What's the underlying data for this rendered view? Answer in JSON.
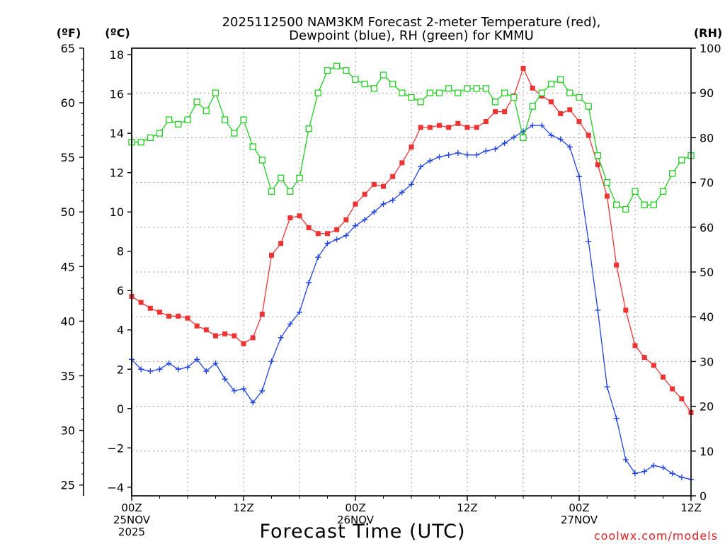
{
  "chart_data": {
    "type": "line",
    "title_line1": "2025112500 NAM3KM Forecast 2-meter Temperature (red),",
    "title_line2": "Dewpoint (blue), RH (green) for KMMU",
    "xlabel": "Forecast Time (UTC)",
    "watermark": "coolwx.com/models",
    "unit_labels": {
      "fahrenheit": "(ºF)",
      "celsius": "(ºC)",
      "rh": "(RH)"
    },
    "x_range_hours": [
      0,
      60
    ],
    "celsius_range": [
      -4.44,
      18.33
    ],
    "rh_range": [
      0,
      100
    ],
    "x_ticks": [
      {
        "hour": 0,
        "lines": [
          "00Z",
          "25NOV",
          "2025"
        ]
      },
      {
        "hour": 12,
        "lines": [
          "12Z"
        ]
      },
      {
        "hour": 24,
        "lines": [
          "00Z",
          "26NOV"
        ]
      },
      {
        "hour": 36,
        "lines": [
          "12Z"
        ]
      },
      {
        "hour": 48,
        "lines": [
          "00Z",
          "27NOV"
        ]
      },
      {
        "hour": 60,
        "lines": [
          "12Z"
        ]
      }
    ],
    "celsius_ticks": [
      -4,
      -2,
      0,
      2,
      4,
      6,
      8,
      10,
      12,
      14,
      16,
      18
    ],
    "fahrenheit_ticks": [
      25,
      30,
      35,
      40,
      45,
      50,
      55,
      60,
      65
    ],
    "rh_ticks": [
      0,
      10,
      20,
      30,
      40,
      50,
      60,
      70,
      80,
      90,
      100
    ],
    "series": [
      {
        "name": "Temperature",
        "unit": "C",
        "color": "#ee3333",
        "marker": "filled-square",
        "values": [
          5.7,
          5.4,
          5.1,
          4.9,
          4.7,
          4.7,
          4.6,
          4.2,
          4.0,
          3.7,
          3.8,
          3.7,
          3.3,
          3.6,
          4.8,
          7.8,
          8.4,
          9.7,
          9.8,
          9.2,
          8.9,
          8.9,
          9.1,
          9.6,
          10.4,
          10.9,
          11.4,
          11.3,
          11.8,
          12.5,
          13.3,
          14.3,
          14.3,
          14.4,
          14.3,
          14.5,
          14.3,
          14.3,
          14.6,
          15.1,
          15.1,
          15.9,
          17.3,
          16.3,
          15.9,
          15.6,
          15.0,
          15.2,
          14.6,
          13.9,
          12.4,
          10.8,
          7.3,
          5.0,
          3.2,
          2.6,
          2.2,
          1.6,
          1.0,
          0.5,
          -0.2
        ]
      },
      {
        "name": "Dewpoint",
        "unit": "C",
        "color": "#2244dd",
        "marker": "plus",
        "values": [
          2.5,
          2.0,
          1.9,
          2.0,
          2.3,
          2.0,
          2.1,
          2.5,
          1.9,
          2.3,
          1.5,
          0.9,
          1.0,
          0.3,
          0.9,
          2.4,
          3.6,
          4.3,
          4.9,
          6.4,
          7.7,
          8.4,
          8.6,
          8.8,
          9.3,
          9.6,
          10.0,
          10.4,
          10.6,
          11.0,
          11.4,
          12.3,
          12.6,
          12.8,
          12.9,
          13.0,
          12.9,
          12.9,
          13.1,
          13.2,
          13.5,
          13.8,
          14.1,
          14.4,
          14.4,
          13.9,
          13.7,
          13.3,
          11.8,
          8.5,
          5.0,
          1.1,
          -0.5,
          -2.6,
          -3.3,
          -3.2,
          -2.9,
          -3.0,
          -3.3,
          -3.5,
          -3.6
        ]
      },
      {
        "name": "RH",
        "unit": "%",
        "color": "#22cc22",
        "marker": "open-square",
        "values": [
          79,
          79,
          80,
          81,
          84,
          83,
          84,
          88,
          86,
          90,
          84,
          81,
          84,
          78,
          75,
          68,
          71,
          68,
          71,
          82,
          90,
          95,
          96,
          95,
          93,
          92,
          91,
          94,
          92,
          90,
          89,
          88,
          90,
          90,
          91,
          90,
          91,
          91,
          91,
          88,
          90,
          89,
          80,
          87,
          90,
          92,
          93,
          90,
          89,
          87,
          76,
          70,
          65,
          64,
          68,
          65,
          65,
          68,
          72,
          75,
          76
        ]
      }
    ]
  }
}
